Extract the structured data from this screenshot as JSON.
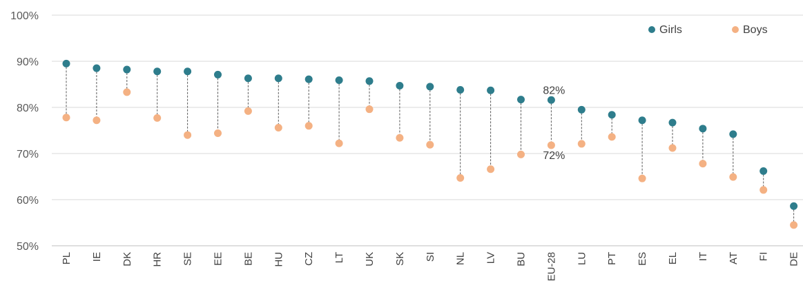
{
  "chart_data": {
    "type": "scatter",
    "title": "",
    "xlabel": "",
    "ylabel": "",
    "ylim": [
      50,
      100
    ],
    "y_ticks": [
      "50%",
      "60%",
      "70%",
      "80%",
      "90%",
      "100%"
    ],
    "grid": true,
    "legend_position": "top-right",
    "categories": [
      "PL",
      "IE",
      "DK",
      "HR",
      "SE",
      "EE",
      "BE",
      "HU",
      "CZ",
      "LT",
      "UK",
      "SK",
      "SI",
      "NL",
      "LV",
      "BU",
      "EU-28",
      "LU",
      "PT",
      "ES",
      "EL",
      "IT",
      "AT",
      "FI",
      "DE"
    ],
    "series": [
      {
        "name": "Girls",
        "color": "#2e7d8c",
        "values": [
          89.5,
          88.5,
          88.2,
          87.8,
          87.8,
          87.1,
          86.3,
          86.3,
          86.1,
          85.9,
          85.7,
          84.7,
          84.5,
          83.8,
          83.7,
          81.7,
          81.6,
          79.5,
          78.4,
          77.2,
          76.7,
          75.4,
          74.2,
          66.2,
          58.6
        ]
      },
      {
        "name": "Boys",
        "color": "#f4b183",
        "values": [
          77.8,
          77.2,
          83.3,
          77.7,
          74.0,
          74.4,
          79.2,
          75.6,
          76.0,
          72.2,
          79.6,
          73.4,
          71.9,
          64.7,
          66.6,
          69.8,
          71.8,
          72.1,
          73.6,
          64.6,
          71.2,
          67.8,
          64.9,
          62.1,
          54.5
        ]
      }
    ],
    "annotations": [
      {
        "category": "EU-28",
        "series": "Girls",
        "text": "82%"
      },
      {
        "category": "EU-28",
        "series": "Boys",
        "text": "72%"
      }
    ]
  }
}
